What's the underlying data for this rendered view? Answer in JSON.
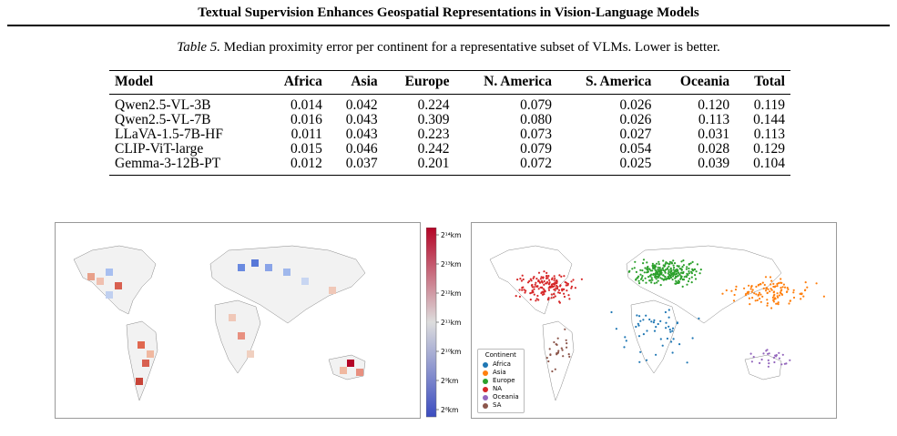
{
  "header": {
    "title": "Textual Supervision Enhances Geospatial Representations in Vision-Language Models"
  },
  "table": {
    "caption_label": "Table 5.",
    "caption_text": "Median proximity error per continent for a representative subset of VLMs. Lower is better.",
    "columns": [
      "Model",
      "Africa",
      "Asia",
      "Europe",
      "N. America",
      "S. America",
      "Oceania",
      "Total"
    ],
    "rows": [
      [
        "Qwen2.5-VL-3B",
        "0.014",
        "0.042",
        "0.224",
        "0.079",
        "0.026",
        "0.120",
        "0.119"
      ],
      [
        "Qwen2.5-VL-7B",
        "0.016",
        "0.043",
        "0.309",
        "0.080",
        "0.026",
        "0.113",
        "0.144"
      ],
      [
        "LLaVA-1.5-7B-HF",
        "0.011",
        "0.043",
        "0.223",
        "0.073",
        "0.027",
        "0.031",
        "0.113"
      ],
      [
        "CLIP-ViT-large",
        "0.015",
        "0.046",
        "0.242",
        "0.079",
        "0.054",
        "0.028",
        "0.129"
      ],
      [
        "Gemma-3-12B-PT",
        "0.012",
        "0.037",
        "0.201",
        "0.072",
        "0.025",
        "0.039",
        "0.104"
      ]
    ]
  },
  "colorbar": {
    "ticks": [
      "2¹⁴km",
      "2¹³km",
      "2¹²km",
      "2¹¹km",
      "2¹⁰km",
      "2⁹km",
      "2⁸km"
    ],
    "high_color": "#b40426",
    "mid_color": "#dddddd",
    "low_color": "#3b4cc0"
  },
  "legend": {
    "title": "Continent",
    "items": [
      {
        "label": "Africa",
        "color": "#1f77b4"
      },
      {
        "label": "Asia",
        "color": "#ff7f0e"
      },
      {
        "label": "Europe",
        "color": "#2ca02c"
      },
      {
        "label": "NA",
        "color": "#d62728"
      },
      {
        "label": "Oceania",
        "color": "#9467bd"
      },
      {
        "label": "SA",
        "color": "#8c564b"
      }
    ]
  }
}
